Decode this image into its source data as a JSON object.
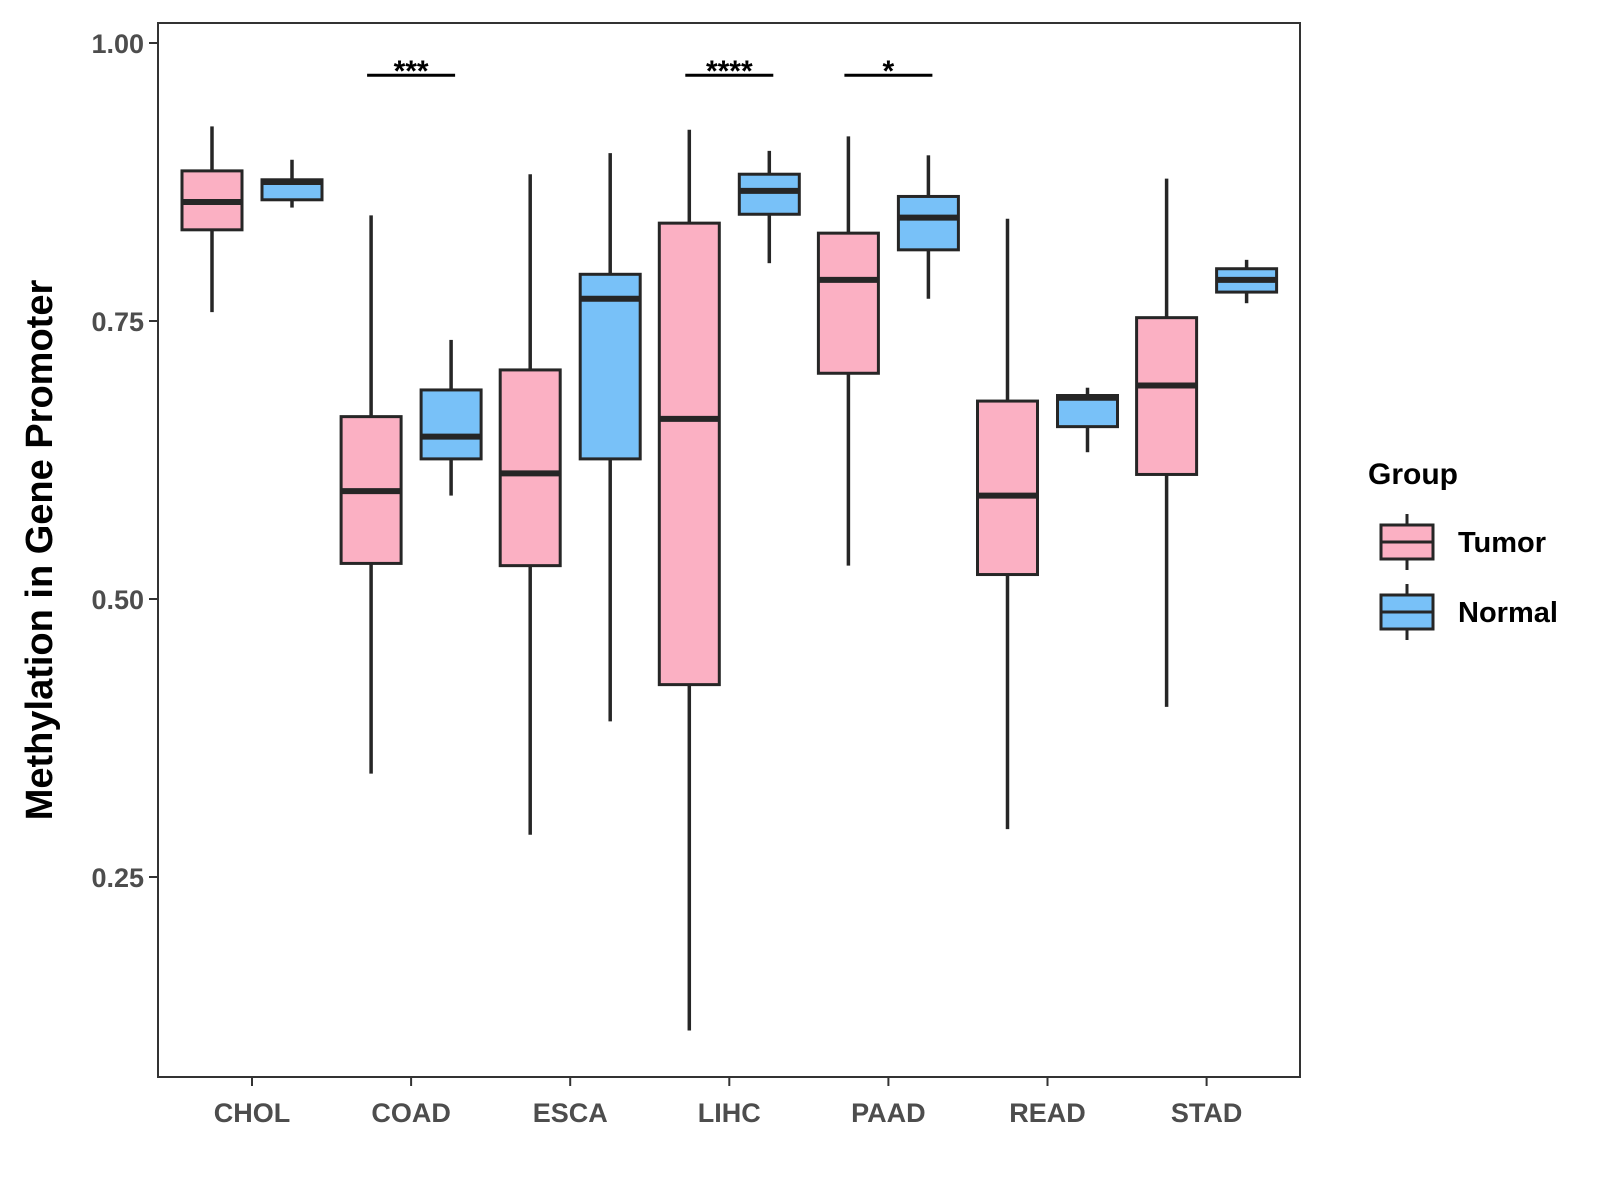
{
  "chart_data": {
    "type": "boxplot",
    "title": "",
    "xlabel": "",
    "ylabel": "Methylation in Gene Promoter",
    "ylim": [
      0.07,
      1.02
    ],
    "yticks": [
      0.25,
      0.5,
      0.75,
      1.0
    ],
    "ytick_labels": [
      "0.25",
      "0.50",
      "0.75",
      "1.00"
    ],
    "categories": [
      "CHOL",
      "COAD",
      "ESCA",
      "LIHC",
      "PAAD",
      "READ",
      "STAD"
    ],
    "legend": {
      "title": "Group",
      "position": "right",
      "entries": [
        {
          "name": "Tumor",
          "color": "#FBB0C3"
        },
        {
          "name": "Normal",
          "color": "#78C1F8"
        }
      ]
    },
    "series": [
      {
        "name": "Tumor",
        "color": "#FBB0C3",
        "boxes": [
          {
            "category": "CHOL",
            "min": 0.758,
            "q1": 0.832,
            "median": 0.857,
            "q3": 0.885,
            "max": 0.925
          },
          {
            "category": "COAD",
            "min": 0.343,
            "q1": 0.532,
            "median": 0.597,
            "q3": 0.664,
            "max": 0.845
          },
          {
            "category": "ESCA",
            "min": 0.288,
            "q1": 0.53,
            "median": 0.613,
            "q3": 0.706,
            "max": 0.882
          },
          {
            "category": "LIHC",
            "min": 0.112,
            "q1": 0.423,
            "median": 0.662,
            "q3": 0.838,
            "max": 0.922
          },
          {
            "category": "PAAD",
            "min": 0.53,
            "q1": 0.703,
            "median": 0.787,
            "q3": 0.829,
            "max": 0.916
          },
          {
            "category": "READ",
            "min": 0.293,
            "q1": 0.522,
            "median": 0.593,
            "q3": 0.678,
            "max": 0.842
          },
          {
            "category": "STAD",
            "min": 0.403,
            "q1": 0.612,
            "median": 0.692,
            "q3": 0.753,
            "max": 0.878
          }
        ]
      },
      {
        "name": "Normal",
        "color": "#78C1F8",
        "boxes": [
          {
            "category": "CHOL",
            "min": 0.852,
            "q1": 0.859,
            "median": 0.875,
            "q3": 0.877,
            "max": 0.895
          },
          {
            "category": "COAD",
            "min": 0.593,
            "q1": 0.626,
            "median": 0.646,
            "q3": 0.688,
            "max": 0.733
          },
          {
            "category": "ESCA",
            "min": 0.39,
            "q1": 0.626,
            "median": 0.77,
            "q3": 0.792,
            "max": 0.901
          },
          {
            "category": "LIHC",
            "min": 0.802,
            "q1": 0.846,
            "median": 0.867,
            "q3": 0.882,
            "max": 0.903
          },
          {
            "category": "PAAD",
            "min": 0.77,
            "q1": 0.814,
            "median": 0.843,
            "q3": 0.862,
            "max": 0.899
          },
          {
            "category": "READ",
            "min": 0.632,
            "q1": 0.655,
            "median": 0.681,
            "q3": 0.683,
            "max": 0.69
          },
          {
            "category": "STAD",
            "min": 0.766,
            "q1": 0.776,
            "median": 0.787,
            "q3": 0.797,
            "max": 0.805
          }
        ]
      }
    ],
    "significance": [
      {
        "category": "COAD",
        "label": "***",
        "y": 0.971
      },
      {
        "category": "LIHC",
        "label": "****",
        "y": 0.971
      },
      {
        "category": "PAAD",
        "label": "*",
        "y": 0.971
      }
    ]
  }
}
